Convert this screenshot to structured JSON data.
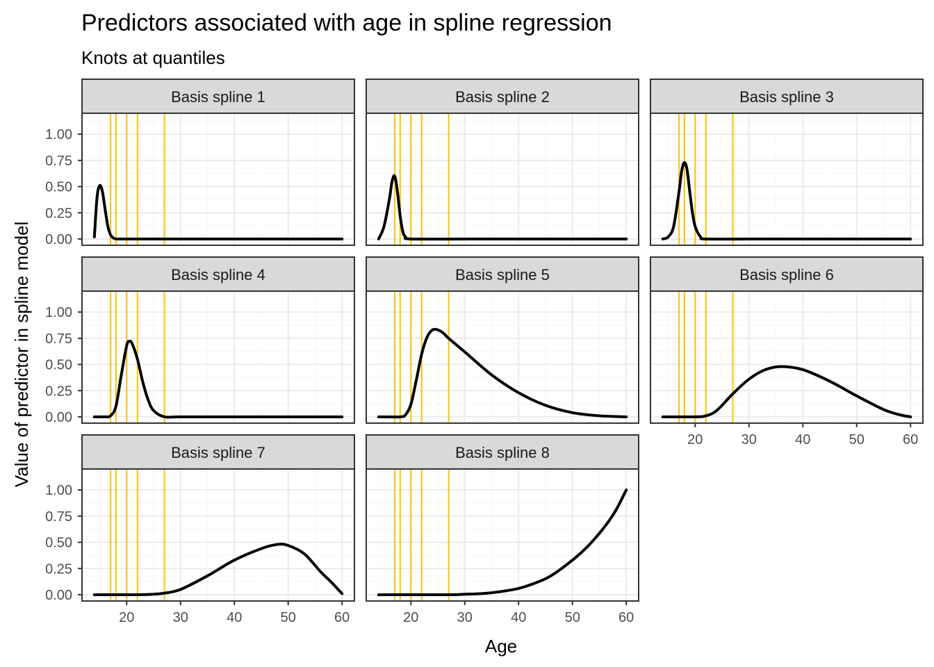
{
  "title": "Predictors associated with age in spline regression",
  "subtitle": "Knots at quantiles",
  "colors": {
    "knot": "#FFC000",
    "curve": "#000000",
    "strip_fill": "#D9D9D9",
    "panel_border": "#333333",
    "grid_major": "#EBEBEB",
    "grid_minor": "#F5F5F5"
  },
  "chart_data": {
    "type": "line",
    "facet_layout": "3 columns x 3 rows",
    "xlabel": "Age",
    "ylabel": "Value of predictor in spline model",
    "xlim": [
      14,
      60
    ],
    "ylim": [
      0,
      1.2
    ],
    "x_ticks": [
      20,
      30,
      40,
      50,
      60
    ],
    "x_tick_labels": [
      "20",
      "30",
      "40",
      "50",
      "60"
    ],
    "y_ticks": [
      0,
      0.25,
      0.5,
      0.75,
      1.0
    ],
    "y_tick_labels": [
      "0.00",
      "0.25",
      "0.50",
      "0.75",
      "1.00"
    ],
    "knots": [
      17,
      18,
      20,
      22,
      27
    ],
    "grid": true,
    "panels": [
      {
        "strip": "Basis spline 1",
        "x": [
          14,
          14.5,
          15,
          15.5,
          16,
          16.5,
          17,
          17.5,
          18,
          19,
          20,
          30,
          40,
          50,
          60
        ],
        "y": [
          0.02,
          0.4,
          0.51,
          0.45,
          0.28,
          0.12,
          0.04,
          0.01,
          0,
          0,
          0,
          0,
          0,
          0,
          0
        ]
      },
      {
        "strip": "Basis spline 2",
        "x": [
          14,
          15,
          16,
          16.5,
          17,
          17.5,
          18,
          18.5,
          19,
          20,
          30,
          40,
          50,
          60
        ],
        "y": [
          0,
          0.12,
          0.38,
          0.55,
          0.6,
          0.45,
          0.22,
          0.07,
          0.02,
          0,
          0,
          0,
          0,
          0
        ]
      },
      {
        "strip": "Basis spline 3",
        "x": [
          14,
          15,
          16,
          17,
          17.5,
          18,
          18.5,
          19,
          19.5,
          20,
          21,
          22,
          30,
          40,
          50,
          60
        ],
        "y": [
          0,
          0.02,
          0.12,
          0.45,
          0.65,
          0.73,
          0.66,
          0.45,
          0.25,
          0.12,
          0.02,
          0,
          0,
          0,
          0,
          0
        ]
      },
      {
        "strip": "Basis spline 4",
        "x": [
          14,
          16,
          17,
          18,
          19,
          20,
          20.5,
          21,
          22,
          23,
          24,
          25,
          27,
          30,
          40,
          50,
          60
        ],
        "y": [
          0,
          0,
          0.01,
          0.1,
          0.4,
          0.68,
          0.72,
          0.7,
          0.55,
          0.33,
          0.16,
          0.06,
          0,
          0,
          0,
          0,
          0
        ]
      },
      {
        "strip": "Basis spline 5",
        "x": [
          14,
          18,
          19,
          20,
          21,
          22,
          23,
          24,
          25,
          26,
          27,
          30,
          35,
          40,
          45,
          50,
          55,
          60
        ],
        "y": [
          0,
          0,
          0.02,
          0.12,
          0.35,
          0.6,
          0.76,
          0.83,
          0.83,
          0.8,
          0.75,
          0.62,
          0.4,
          0.23,
          0.11,
          0.04,
          0.01,
          0
        ]
      },
      {
        "strip": "Basis spline 6",
        "x": [
          14,
          20,
          22,
          24,
          27,
          30,
          33,
          36,
          40,
          45,
          50,
          55,
          58,
          60
        ],
        "y": [
          0,
          0,
          0.01,
          0.06,
          0.22,
          0.36,
          0.45,
          0.48,
          0.45,
          0.34,
          0.2,
          0.07,
          0.02,
          0
        ]
      },
      {
        "strip": "Basis spline 7",
        "x": [
          14,
          22,
          25,
          27,
          30,
          35,
          40,
          45,
          48,
          50,
          53,
          56,
          58,
          60
        ],
        "y": [
          0,
          0,
          0.005,
          0.015,
          0.05,
          0.18,
          0.33,
          0.44,
          0.48,
          0.47,
          0.39,
          0.22,
          0.12,
          0.01
        ]
      },
      {
        "strip": "Basis spline 8",
        "x": [
          14,
          27,
          30,
          33,
          36,
          40,
          43,
          46,
          50,
          53,
          56,
          58,
          60
        ],
        "y": [
          0,
          0,
          0.005,
          0.01,
          0.025,
          0.06,
          0.11,
          0.18,
          0.33,
          0.47,
          0.65,
          0.8,
          1.0
        ]
      }
    ]
  }
}
